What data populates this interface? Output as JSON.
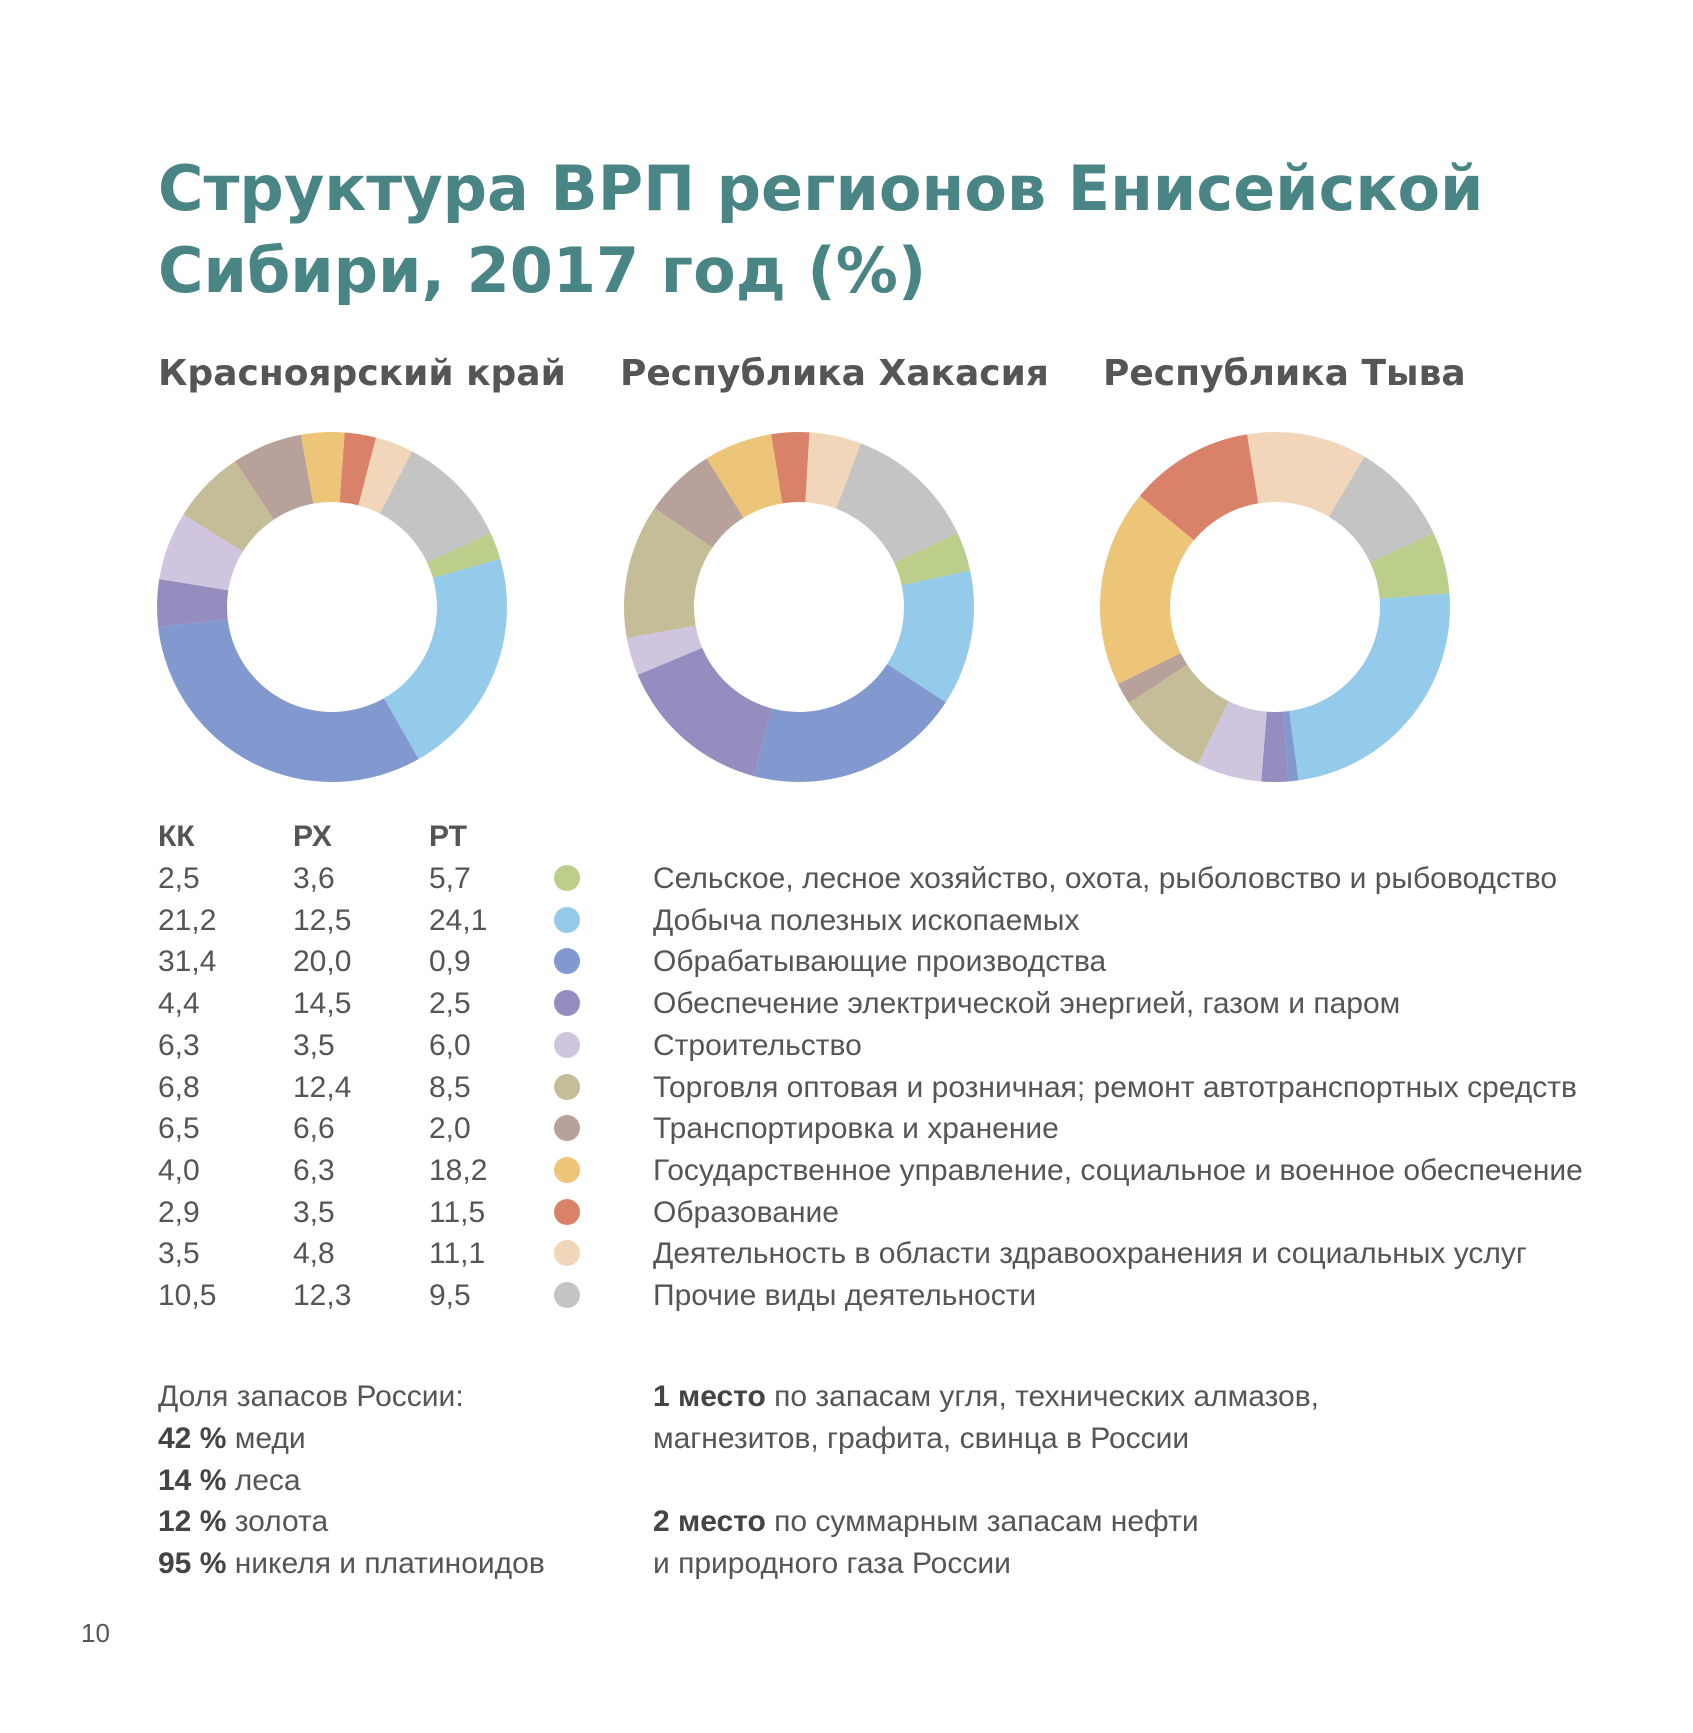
{
  "header": {
    "title": [
      "Структура ВРП регионов Енисейской",
      "Сибири, 2017 год (%)"
    ]
  },
  "chart_data": [
    {
      "type": "pie",
      "title": "Красноярский край",
      "column": "КК",
      "values": [
        2.5,
        21.2,
        31.4,
        4.4,
        6.3,
        6.8,
        6.5,
        4.0,
        2.9,
        3.5,
        10.5
      ],
      "value_labels": [
        "2,5",
        "21,2",
        "31,4",
        "4,4",
        "6,3",
        "6,8",
        "6,5",
        "4,0",
        "2,9",
        "3,5",
        "10,5"
      ]
    },
    {
      "type": "pie",
      "title": "Республика Хакасия",
      "column": "РХ",
      "values": [
        3.6,
        12.5,
        20.0,
        14.5,
        3.5,
        12.4,
        6.6,
        6.3,
        3.5,
        4.8,
        12.3
      ],
      "value_labels": [
        "3,6",
        "12,5",
        "20,0",
        "14,5",
        "3,5",
        "12,4",
        "6,6",
        "6,3",
        "3,5",
        "4,8",
        "12,3"
      ]
    },
    {
      "type": "pie",
      "title": "Республика Тыва",
      "column": "РТ",
      "values": [
        5.7,
        24.1,
        0.9,
        2.5,
        6.0,
        8.5,
        2.0,
        18.2,
        11.5,
        11.1,
        9.5
      ],
      "value_labels": [
        "5,7",
        "24,1",
        "0,9",
        "2,5",
        "6,0",
        "8,5",
        "2,0",
        "18,2",
        "11,5",
        "11,1",
        "9,5"
      ]
    }
  ],
  "legend": {
    "categories": [
      "Сельское, лесное хозяйство, охота, рыболовство и рыбоводство",
      "Добыча полезных ископаемых",
      "Обрабатывающие производства",
      "Обеспечение электрической энергией, газом и паром",
      "Строительство",
      "Торговля оптовая и розничная; ремонт автотранспортных средств",
      "Транспортировка и хранение",
      "Государственное управление, социальное и военное обеспечение",
      "Образование",
      "Деятельность в области здравоохранения и социальных услуг",
      "Прочие виды деятельности"
    ],
    "colors": [
      "#bccf8a",
      "#94cbea",
      "#8199cf",
      "#958cc0",
      "#d0c5df",
      "#c5bd98",
      "#b8a19a",
      "#ecc578",
      "#d98269",
      "#f1d6b9",
      "#c4c4c4"
    ]
  },
  "reserves": {
    "heading": "Доля запасов России:",
    "items": [
      {
        "amount": "42 %",
        "text": "меди"
      },
      {
        "amount": "14 %",
        "text": "леса"
      },
      {
        "amount": "12 %",
        "text": "золота"
      },
      {
        "amount": "95 %",
        "text": "никеля и платиноидов"
      }
    ]
  },
  "ranks": [
    {
      "rank": "1 место",
      "lines": [
        "по запасам угля, технических алмазов,",
        "магнезитов, графита, свинца в России"
      ]
    },
    {
      "rank": "2 место",
      "lines": [
        "по суммарным запасам нефти",
        "и природного газа России"
      ]
    }
  ],
  "page_number": "10"
}
